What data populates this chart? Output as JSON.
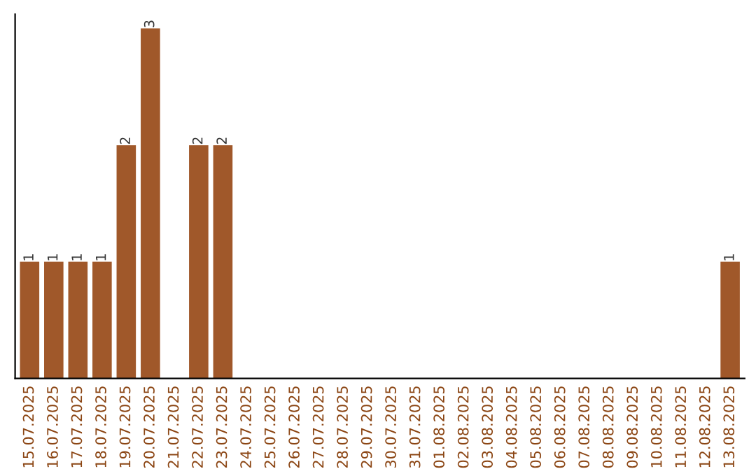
{
  "chart_data": {
    "type": "bar",
    "categories": [
      "15.07.2025",
      "16.07.2025",
      "17.07.2025",
      "18.07.2025",
      "19.07.2025",
      "20.07.2025",
      "21.07.2025",
      "22.07.2025",
      "23.07.2025",
      "24.07.2025",
      "25.07.2025",
      "26.07.2025",
      "27.07.2025",
      "28.07.2025",
      "29.07.2025",
      "30.07.2025",
      "31.07.2025",
      "01.08.2025",
      "02.08.2025",
      "03.08.2025",
      "04.08.2025",
      "05.08.2025",
      "06.08.2025",
      "07.08.2025",
      "08.08.2025",
      "09.08.2025",
      "10.08.2025",
      "11.08.2025",
      "12.08.2025",
      "13.08.2025"
    ],
    "values": [
      1,
      1,
      1,
      1,
      2,
      3,
      0,
      2,
      2,
      0,
      0,
      0,
      0,
      0,
      0,
      0,
      0,
      0,
      0,
      0,
      0,
      0,
      0,
      0,
      0,
      0,
      0,
      0,
      0,
      1
    ],
    "value_labels": [
      "1",
      "1",
      "1",
      "1",
      "2",
      "3",
      null,
      "2",
      "2",
      null,
      null,
      null,
      null,
      null,
      null,
      null,
      null,
      null,
      null,
      null,
      null,
      null,
      null,
      null,
      null,
      null,
      null,
      null,
      null,
      "1"
    ],
    "color": "#a0582a",
    "grid": false,
    "tick_labels": "x",
    "legend": false
  }
}
